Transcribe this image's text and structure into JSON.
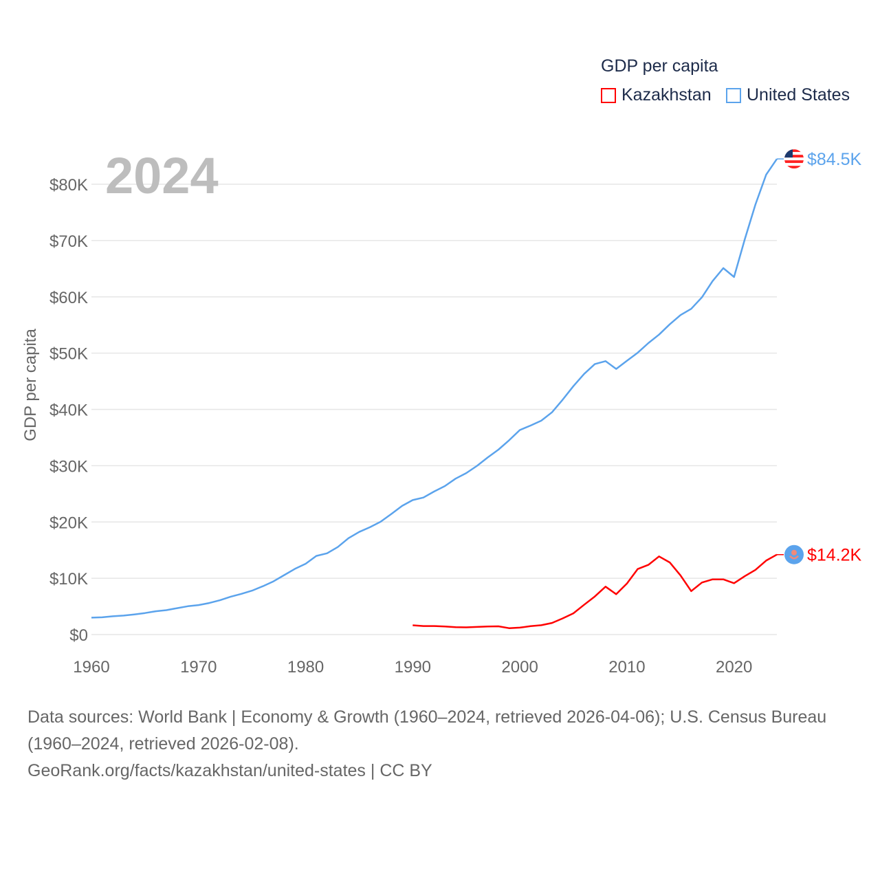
{
  "chart_data": {
    "type": "line",
    "title": "GDP per capita",
    "ylabel": "GDP per capita",
    "xlabel": "",
    "year_label": "2024",
    "xlim": [
      1960,
      2024
    ],
    "ylim": [
      0,
      80000
    ],
    "x_ticks": [
      1960,
      1970,
      1980,
      1990,
      2000,
      2010,
      2020
    ],
    "y_ticks": [
      {
        "v": 0,
        "label": "$0"
      },
      {
        "v": 10000,
        "label": "$10K"
      },
      {
        "v": 20000,
        "label": "$20K"
      },
      {
        "v": 30000,
        "label": "$30K"
      },
      {
        "v": 40000,
        "label": "$40K"
      },
      {
        "v": 50000,
        "label": "$50K"
      },
      {
        "v": 60000,
        "label": "$60K"
      },
      {
        "v": 70000,
        "label": "$70K"
      },
      {
        "v": 80000,
        "label": "$80K"
      }
    ],
    "grid": true,
    "legend_placement": "top-right",
    "series": [
      {
        "name": "Kazakhstan",
        "color": "#ff0000",
        "end_label": "$14.2K",
        "icon": "kazakhstan-flag-icon",
        "start_year": 1990,
        "values": [
          1647,
          1512,
          1515,
          1434,
          1321,
          1288,
          1350,
          1446,
          1469,
          1130,
          1229,
          1491,
          1658,
          2068,
          2874,
          3771,
          5292,
          6771,
          8514,
          7165,
          9071,
          11634,
          12387,
          13891,
          12807,
          10510,
          7715,
          9248,
          9813,
          9813,
          9122,
          10373,
          11492,
          13137,
          14200
        ]
      },
      {
        "name": "United States",
        "color": "#5ba3ec",
        "end_label": "$84.5K",
        "icon": "us-flag-icon",
        "start_year": 1960,
        "values": [
          3007,
          3067,
          3244,
          3375,
          3574,
          3828,
          4146,
          4336,
          4696,
          5032,
          5234,
          5609,
          6094,
          6726,
          7226,
          7801,
          8592,
          9453,
          10565,
          11674,
          12575,
          13976,
          14434,
          15544,
          17121,
          18237,
          19071,
          20039,
          21417,
          22857,
          23889,
          24342,
          25419,
          26387,
          27695,
          28691,
          29968,
          31459,
          32854,
          34516,
          36330,
          37134,
          37998,
          39490,
          41725,
          44123,
          46302,
          48050,
          48570,
          47195,
          48651,
          50066,
          51784,
          53291,
          55124,
          56763,
          57867,
          59915,
          62805,
          65095,
          63528,
          70219,
          76399,
          81695,
          84500
        ]
      }
    ]
  },
  "footer": {
    "line1": "Data sources: World Bank | Economy & Growth (1960–2024, retrieved 2026-04-06); U.S. Census Bureau (1960–2024, retrieved 2026-02-08).",
    "line2": "GeoRank.org/facts/kazakhstan/united-states | CC BY"
  }
}
